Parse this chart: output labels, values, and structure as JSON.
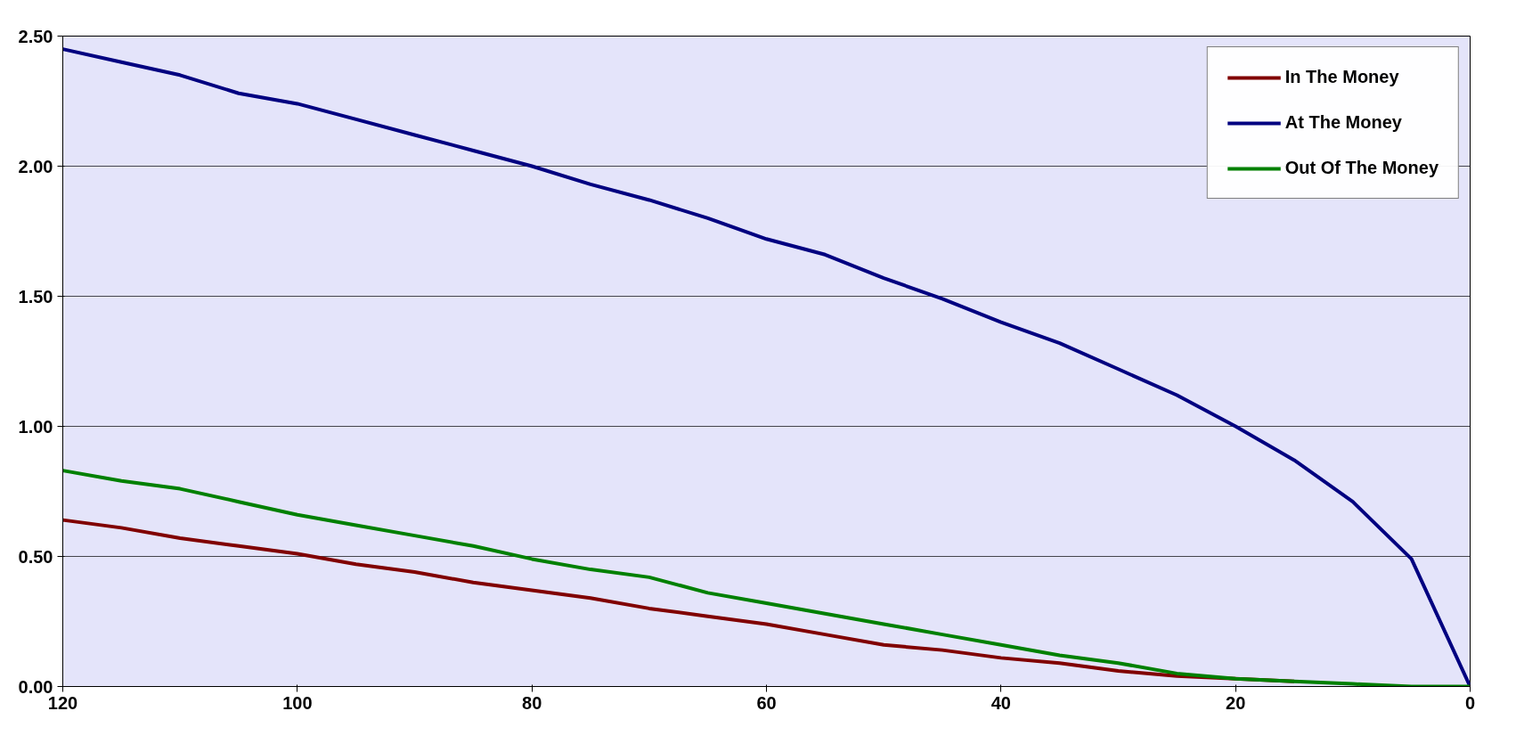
{
  "chart_data": {
    "type": "line",
    "x": [
      120,
      115,
      110,
      105,
      100,
      95,
      90,
      85,
      80,
      75,
      70,
      65,
      60,
      55,
      50,
      45,
      40,
      35,
      30,
      25,
      20,
      15,
      10,
      5,
      0
    ],
    "series": [
      {
        "name": "In The Money",
        "color": "#800000",
        "values": [
          0.64,
          0.61,
          0.57,
          0.54,
          0.51,
          0.47,
          0.44,
          0.4,
          0.37,
          0.34,
          0.3,
          0.27,
          0.24,
          0.2,
          0.16,
          0.14,
          0.11,
          0.09,
          0.06,
          0.04,
          0.03,
          0.02,
          null,
          null,
          null
        ]
      },
      {
        "name": "At The Money",
        "color": "#000080",
        "values": [
          2.45,
          2.4,
          2.35,
          2.28,
          2.24,
          2.18,
          2.12,
          2.06,
          2.0,
          1.93,
          1.87,
          1.8,
          1.72,
          1.66,
          1.57,
          1.49,
          1.4,
          1.32,
          1.22,
          1.12,
          1.0,
          0.87,
          0.71,
          0.49,
          0.0
        ]
      },
      {
        "name": "Out Of The Money",
        "color": "#008000",
        "values": [
          0.83,
          0.79,
          0.76,
          0.71,
          0.66,
          0.62,
          0.58,
          0.54,
          0.49,
          0.45,
          0.42,
          0.36,
          0.32,
          0.28,
          0.24,
          0.2,
          0.16,
          0.12,
          0.09,
          0.05,
          0.03,
          0.02,
          0.01,
          0.0,
          0.0
        ]
      }
    ],
    "xlim": [
      120,
      0
    ],
    "xticks": [
      120,
      100,
      80,
      60,
      40,
      20,
      0
    ],
    "ylim": [
      0,
      2.5
    ],
    "yticks": [
      {
        "value": 0,
        "label": "0.00"
      },
      {
        "value": 0.5,
        "label": "0.50"
      },
      {
        "value": 1,
        "label": "1.00"
      },
      {
        "value": 1.5,
        "label": "1.50"
      },
      {
        "value": 2,
        "label": "2.00"
      },
      {
        "value": 2.5,
        "label": "2.50"
      }
    ],
    "grid": "y",
    "legend": "top right",
    "marker": "none",
    "line_style": "solid"
  }
}
